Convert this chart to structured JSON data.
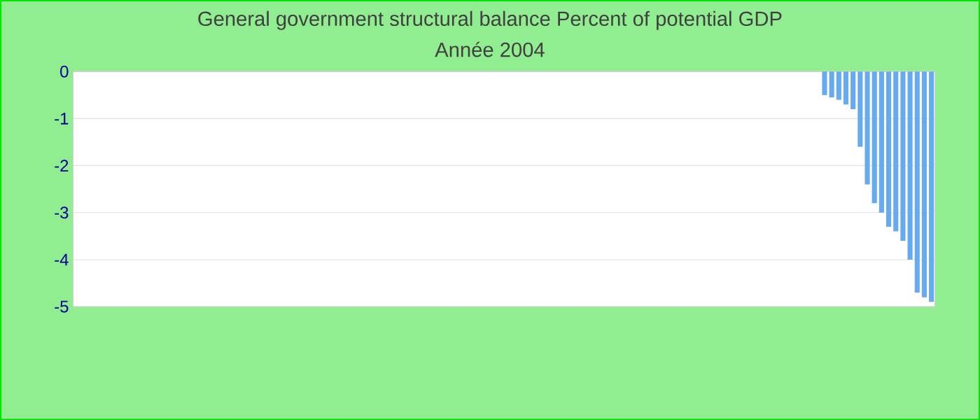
{
  "chart_data": {
    "type": "bar",
    "title": "General government structural balance  Percent of potential GDP",
    "subtitle": "Année 2004",
    "categories": [
      null,
      null,
      null,
      null,
      null,
      null,
      null,
      null,
      null,
      null,
      null,
      null,
      null,
      null,
      null,
      null,
      null,
      null,
      null,
      null,
      null,
      null,
      null,
      null,
      null,
      null,
      null,
      null,
      null,
      null,
      null,
      null,
      null,
      null,
      null,
      null,
      null,
      null,
      null,
      null,
      null,
      null,
      null,
      null,
      null,
      null,
      null,
      null,
      null,
      null,
      null,
      null,
      null,
      null,
      null,
      null,
      null,
      null,
      null,
      null,
      null,
      null,
      null,
      null,
      null,
      null,
      null,
      null,
      null,
      null,
      null,
      null,
      null,
      null,
      null,
      null,
      null,
      null,
      null,
      null,
      null,
      null,
      null,
      null,
      null,
      null,
      null,
      null,
      null,
      null,
      null,
      null,
      null,
      null,
      null,
      null,
      null,
      null,
      null,
      null,
      null,
      null,
      null,
      null,
      null,
      null,
      null,
      null,
      null,
      null,
      null,
      null,
      null,
      null,
      null,
      null,
      null,
      null,
      null,
      null,
      null
    ],
    "values": [
      null,
      null,
      null,
      null,
      null,
      null,
      null,
      null,
      null,
      null,
      null,
      null,
      null,
      null,
      null,
      null,
      null,
      null,
      null,
      null,
      null,
      null,
      null,
      null,
      null,
      null,
      null,
      null,
      null,
      null,
      null,
      null,
      null,
      null,
      null,
      null,
      null,
      null,
      null,
      null,
      null,
      null,
      null,
      null,
      null,
      null,
      null,
      null,
      null,
      null,
      null,
      null,
      null,
      null,
      null,
      null,
      null,
      null,
      null,
      null,
      null,
      null,
      null,
      null,
      null,
      null,
      null,
      null,
      null,
      null,
      null,
      null,
      null,
      null,
      null,
      null,
      null,
      null,
      null,
      null,
      null,
      null,
      null,
      null,
      null,
      null,
      null,
      null,
      null,
      null,
      null,
      null,
      null,
      null,
      null,
      null,
      null,
      null,
      null,
      null,
      null,
      null,
      null,
      null,
      null,
      -0.5,
      -0.55,
      -0.6,
      -0.7,
      -0.8,
      -1.6,
      -2.4,
      -2.8,
      -3.0,
      -3.3,
      -3.4,
      -3.6,
      -4.0,
      -4.7,
      -4.8,
      -4.9
    ],
    "color": "#66aaf0",
    "ylim": [
      -5,
      0
    ],
    "yticks": [
      0,
      -1,
      -2,
      -3,
      -4,
      -5
    ],
    "grid": "y"
  }
}
